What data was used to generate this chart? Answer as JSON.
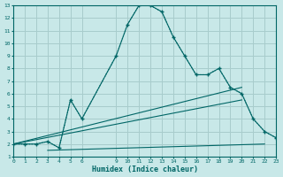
{
  "xlabel": "Humidex (Indice chaleur)",
  "background_color": "#c8e8e8",
  "grid_color": "#a8cccc",
  "line_color": "#006666",
  "xlim": [
    0,
    23
  ],
  "ylim": [
    1,
    13
  ],
  "xticks": [
    0,
    1,
    2,
    3,
    4,
    5,
    6,
    9,
    10,
    11,
    12,
    13,
    14,
    15,
    16,
    17,
    18,
    19,
    20,
    21,
    22,
    23
  ],
  "yticks": [
    1,
    2,
    3,
    4,
    5,
    6,
    7,
    8,
    9,
    10,
    11,
    12,
    13
  ],
  "curve_dotted_x": [
    0,
    1,
    2,
    3,
    4,
    5,
    6,
    9,
    10,
    11,
    12,
    13,
    14,
    15,
    16,
    17,
    18,
    19,
    20,
    21,
    22,
    23
  ],
  "curve_dotted_y": [
    2,
    2,
    2,
    2.2,
    1.7,
    5.5,
    4.0,
    9.0,
    11.5,
    13.0,
    13.0,
    12.5,
    10.5,
    9.0,
    7.5,
    7.5,
    8.0,
    6.5,
    6.0,
    4.0,
    3.0,
    2.5
  ],
  "curve_solid_x": [
    0,
    1,
    2,
    3,
    4,
    5,
    6,
    9,
    10,
    11,
    12,
    13,
    14,
    15,
    16,
    17,
    18,
    19,
    20,
    21,
    22,
    23
  ],
  "curve_solid_y": [
    2,
    2,
    2,
    2.2,
    1.7,
    5.5,
    4.0,
    9.0,
    11.5,
    13.0,
    13.0,
    12.5,
    10.5,
    9.0,
    7.5,
    7.5,
    8.0,
    6.5,
    6.0,
    4.0,
    3.0,
    2.5
  ],
  "line1_x": [
    0,
    20
  ],
  "line1_y": [
    2.0,
    6.5
  ],
  "line2_x": [
    0,
    20
  ],
  "line2_y": [
    2.0,
    5.5
  ],
  "line3_x": [
    3,
    22
  ],
  "line3_y": [
    1.5,
    2.0
  ]
}
